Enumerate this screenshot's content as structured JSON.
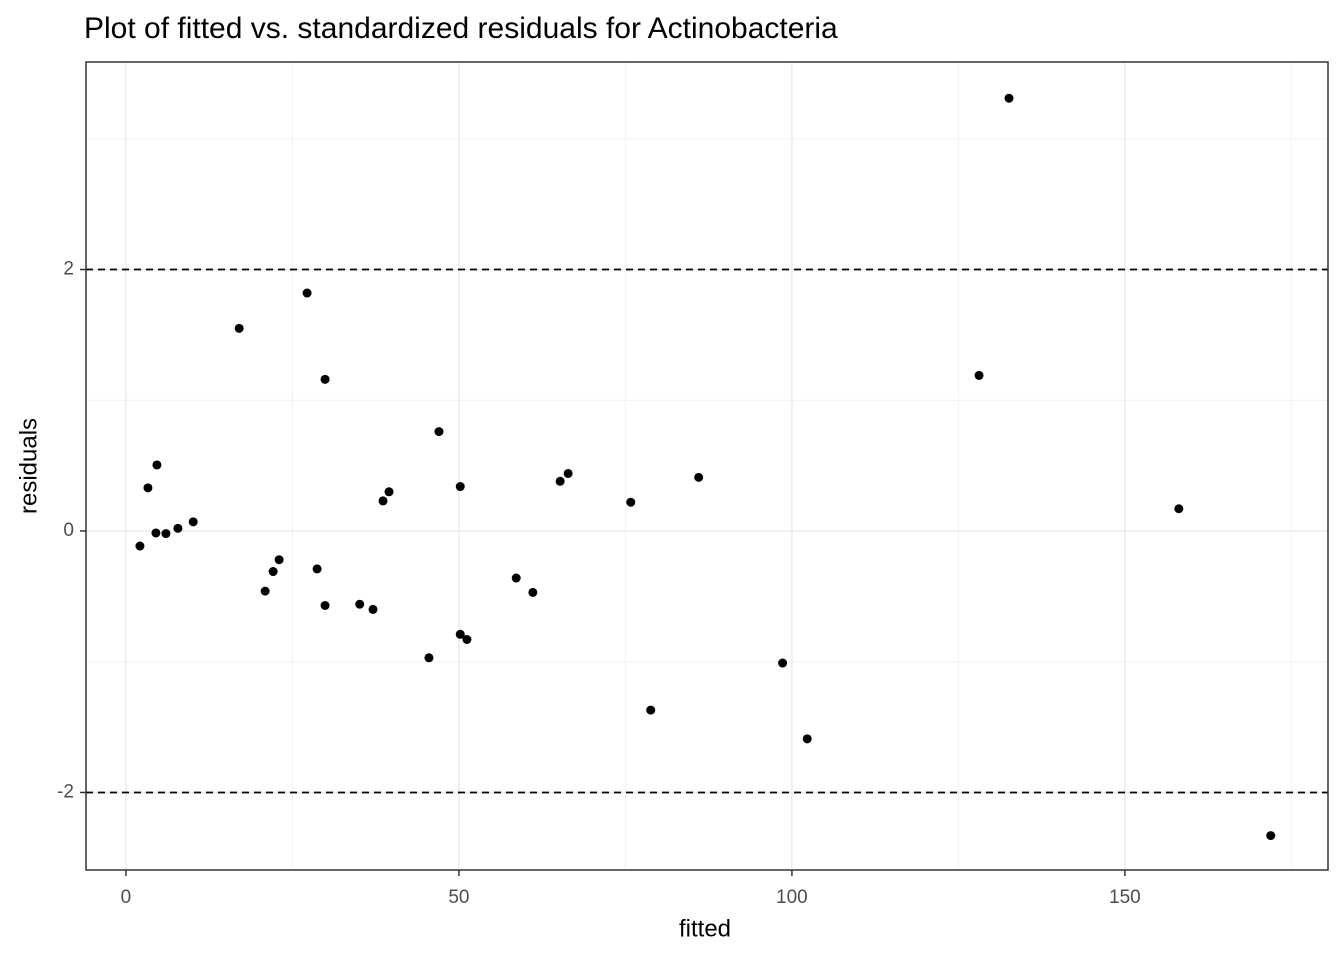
{
  "chart_data": {
    "type": "scatter",
    "title": "Plot of fitted vs. standardized residuals for Actinobacteria",
    "x_label": "fitted",
    "y_label": "residuals",
    "color": "#000000",
    "grid": true,
    "hlines": [
      2,
      -2
    ],
    "xlim": [
      -6.0,
      180.5
    ],
    "ylim": [
      -2.593,
      3.587
    ],
    "xticks": [
      0,
      50,
      100,
      150
    ],
    "yticks": [
      -2,
      0,
      2
    ],
    "x": [
      2.1,
      3.3,
      4.5,
      4.65,
      6.0,
      7.8,
      10.1,
      17.0,
      20.9,
      22.1,
      23.0,
      27.2,
      28.7,
      29.9,
      29.9,
      35.1,
      37.1,
      38.6,
      39.5,
      45.5,
      47.0,
      50.2,
      50.2,
      51.2,
      58.6,
      61.1,
      65.2,
      66.4,
      75.8,
      78.8,
      86.0,
      98.6,
      102.3,
      128.1,
      132.6,
      158.1,
      171.9
    ],
    "values": [
      -0.115,
      0.33,
      -0.015,
      0.505,
      -0.02,
      0.02,
      0.07,
      1.55,
      -0.46,
      -0.31,
      -0.22,
      1.82,
      -0.29,
      1.16,
      -0.57,
      -0.56,
      -0.6,
      0.23,
      0.3,
      -0.97,
      0.76,
      0.34,
      -0.79,
      -0.83,
      -0.36,
      -0.47,
      0.38,
      0.44,
      0.22,
      -1.37,
      0.41,
      -1.01,
      -1.59,
      1.19,
      3.31,
      0.17,
      -2.33
    ]
  }
}
